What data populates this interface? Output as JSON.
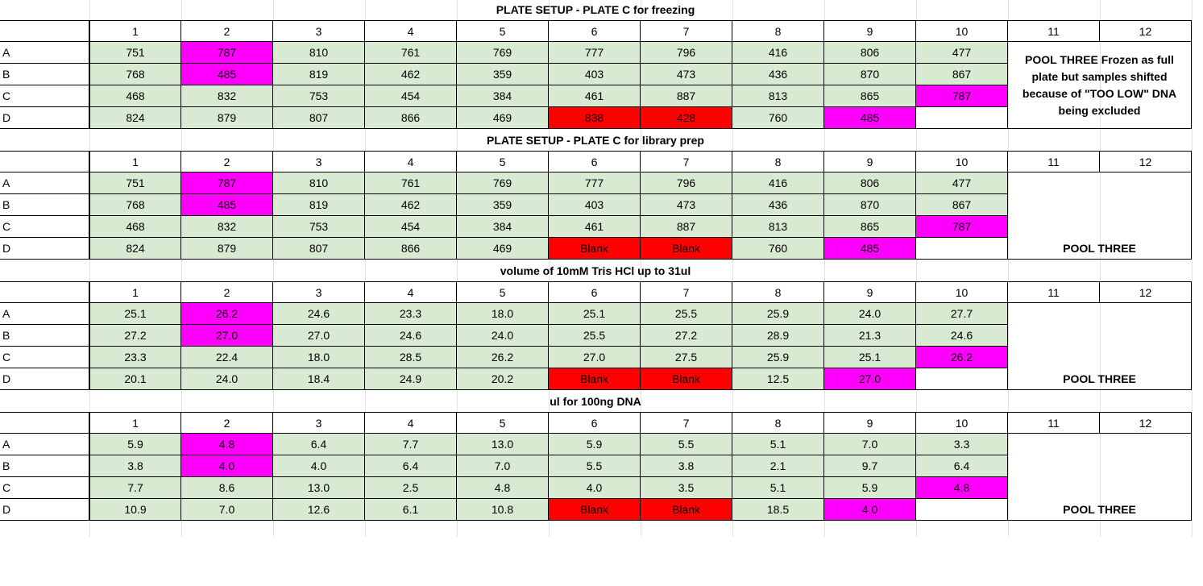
{
  "colors": {
    "green": "#d9ead3",
    "magenta": "#ff00ff",
    "red": "#ff0000",
    "white": "#ffffff"
  },
  "columns": [
    "1",
    "2",
    "3",
    "4",
    "5",
    "6",
    "7",
    "8",
    "9",
    "10",
    "11",
    "12"
  ],
  "rows": [
    "A",
    "B",
    "C",
    "D"
  ],
  "sections": [
    {
      "title": "PLATE SETUP - PLATE C for freezing",
      "note": "POOL THREE Frozen as full plate but samples shifted because of \"TOO LOW\" DNA being excluded",
      "pool": "",
      "cells": [
        [
          [
            "751",
            "g"
          ],
          [
            "787",
            "m"
          ],
          [
            "810",
            "g"
          ],
          [
            "761",
            "g"
          ],
          [
            "769",
            "g"
          ],
          [
            "777",
            "g"
          ],
          [
            "796",
            "g"
          ],
          [
            "416",
            "g"
          ],
          [
            "806",
            "g"
          ],
          [
            "477",
            "g"
          ]
        ],
        [
          [
            "768",
            "g"
          ],
          [
            "485",
            "m"
          ],
          [
            "819",
            "g"
          ],
          [
            "462",
            "g"
          ],
          [
            "359",
            "g"
          ],
          [
            "403",
            "g"
          ],
          [
            "473",
            "g"
          ],
          [
            "436",
            "g"
          ],
          [
            "870",
            "g"
          ],
          [
            "867",
            "g"
          ]
        ],
        [
          [
            "468",
            "g"
          ],
          [
            "832",
            "g"
          ],
          [
            "753",
            "g"
          ],
          [
            "454",
            "g"
          ],
          [
            "384",
            "g"
          ],
          [
            "461",
            "g"
          ],
          [
            "887",
            "g"
          ],
          [
            "813",
            "g"
          ],
          [
            "865",
            "g"
          ],
          [
            "787",
            "m"
          ]
        ],
        [
          [
            "824",
            "g"
          ],
          [
            "879",
            "g"
          ],
          [
            "807",
            "g"
          ],
          [
            "866",
            "g"
          ],
          [
            "469",
            "g"
          ],
          [
            "838",
            "r"
          ],
          [
            "428",
            "r"
          ],
          [
            "760",
            "g"
          ],
          [
            "485",
            "m"
          ],
          [
            "",
            "w"
          ]
        ]
      ]
    },
    {
      "title": "PLATE SETUP - PLATE C for library prep",
      "note": "",
      "pool": "POOL THREE",
      "cells": [
        [
          [
            "751",
            "g"
          ],
          [
            "787",
            "m"
          ],
          [
            "810",
            "g"
          ],
          [
            "761",
            "g"
          ],
          [
            "769",
            "g"
          ],
          [
            "777",
            "g"
          ],
          [
            "796",
            "g"
          ],
          [
            "416",
            "g"
          ],
          [
            "806",
            "g"
          ],
          [
            "477",
            "g"
          ]
        ],
        [
          [
            "768",
            "g"
          ],
          [
            "485",
            "m"
          ],
          [
            "819",
            "g"
          ],
          [
            "462",
            "g"
          ],
          [
            "359",
            "g"
          ],
          [
            "403",
            "g"
          ],
          [
            "473",
            "g"
          ],
          [
            "436",
            "g"
          ],
          [
            "870",
            "g"
          ],
          [
            "867",
            "g"
          ]
        ],
        [
          [
            "468",
            "g"
          ],
          [
            "832",
            "g"
          ],
          [
            "753",
            "g"
          ],
          [
            "454",
            "g"
          ],
          [
            "384",
            "g"
          ],
          [
            "461",
            "g"
          ],
          [
            "887",
            "g"
          ],
          [
            "813",
            "g"
          ],
          [
            "865",
            "g"
          ],
          [
            "787",
            "m"
          ]
        ],
        [
          [
            "824",
            "g"
          ],
          [
            "879",
            "g"
          ],
          [
            "807",
            "g"
          ],
          [
            "866",
            "g"
          ],
          [
            "469",
            "g"
          ],
          [
            "Blank",
            "r"
          ],
          [
            "Blank",
            "r"
          ],
          [
            "760",
            "g"
          ],
          [
            "485",
            "m"
          ],
          [
            "",
            "w"
          ]
        ]
      ]
    },
    {
      "title": "volume of 10mM Tris HCl up to 31ul",
      "note": "",
      "pool": "POOL THREE",
      "cells": [
        [
          [
            "25.1",
            "g"
          ],
          [
            "26.2",
            "m"
          ],
          [
            "24.6",
            "g"
          ],
          [
            "23.3",
            "g"
          ],
          [
            "18.0",
            "g"
          ],
          [
            "25.1",
            "g"
          ],
          [
            "25.5",
            "g"
          ],
          [
            "25.9",
            "g"
          ],
          [
            "24.0",
            "g"
          ],
          [
            "27.7",
            "g"
          ]
        ],
        [
          [
            "27.2",
            "g"
          ],
          [
            "27.0",
            "m"
          ],
          [
            "27.0",
            "g"
          ],
          [
            "24.6",
            "g"
          ],
          [
            "24.0",
            "g"
          ],
          [
            "25.5",
            "g"
          ],
          [
            "27.2",
            "g"
          ],
          [
            "28.9",
            "g"
          ],
          [
            "21.3",
            "g"
          ],
          [
            "24.6",
            "g"
          ]
        ],
        [
          [
            "23.3",
            "g"
          ],
          [
            "22.4",
            "g"
          ],
          [
            "18.0",
            "g"
          ],
          [
            "28.5",
            "g"
          ],
          [
            "26.2",
            "g"
          ],
          [
            "27.0",
            "g"
          ],
          [
            "27.5",
            "g"
          ],
          [
            "25.9",
            "g"
          ],
          [
            "25.1",
            "g"
          ],
          [
            "26.2",
            "m"
          ]
        ],
        [
          [
            "20.1",
            "g"
          ],
          [
            "24.0",
            "g"
          ],
          [
            "18.4",
            "g"
          ],
          [
            "24.9",
            "g"
          ],
          [
            "20.2",
            "g"
          ],
          [
            "Blank",
            "r"
          ],
          [
            "Blank",
            "r"
          ],
          [
            "12.5",
            "g"
          ],
          [
            "27.0",
            "m"
          ],
          [
            "",
            "w"
          ]
        ]
      ]
    },
    {
      "title": "ul for 100ng DNA",
      "note": "",
      "pool": "POOL THREE",
      "cells": [
        [
          [
            "5.9",
            "g"
          ],
          [
            "4.8",
            "m"
          ],
          [
            "6.4",
            "g"
          ],
          [
            "7.7",
            "g"
          ],
          [
            "13.0",
            "g"
          ],
          [
            "5.9",
            "g"
          ],
          [
            "5.5",
            "g"
          ],
          [
            "5.1",
            "g"
          ],
          [
            "7.0",
            "g"
          ],
          [
            "3.3",
            "g"
          ]
        ],
        [
          [
            "3.8",
            "g"
          ],
          [
            "4.0",
            "m"
          ],
          [
            "4.0",
            "g"
          ],
          [
            "6.4",
            "g"
          ],
          [
            "7.0",
            "g"
          ],
          [
            "5.5",
            "g"
          ],
          [
            "3.8",
            "g"
          ],
          [
            "2.1",
            "g"
          ],
          [
            "9.7",
            "g"
          ],
          [
            "6.4",
            "g"
          ]
        ],
        [
          [
            "7.7",
            "g"
          ],
          [
            "8.6",
            "g"
          ],
          [
            "13.0",
            "g"
          ],
          [
            "2.5",
            "g"
          ],
          [
            "4.8",
            "g"
          ],
          [
            "4.0",
            "g"
          ],
          [
            "3.5",
            "g"
          ],
          [
            "5.1",
            "g"
          ],
          [
            "5.9",
            "g"
          ],
          [
            "4.8",
            "m"
          ]
        ],
        [
          [
            "10.9",
            "g"
          ],
          [
            "7.0",
            "g"
          ],
          [
            "12.6",
            "g"
          ],
          [
            "6.1",
            "g"
          ],
          [
            "10.8",
            "g"
          ],
          [
            "Blank",
            "r"
          ],
          [
            "Blank",
            "r"
          ],
          [
            "18.5",
            "g"
          ],
          [
            "4.0",
            "m"
          ],
          [
            "",
            "w"
          ]
        ]
      ]
    }
  ]
}
